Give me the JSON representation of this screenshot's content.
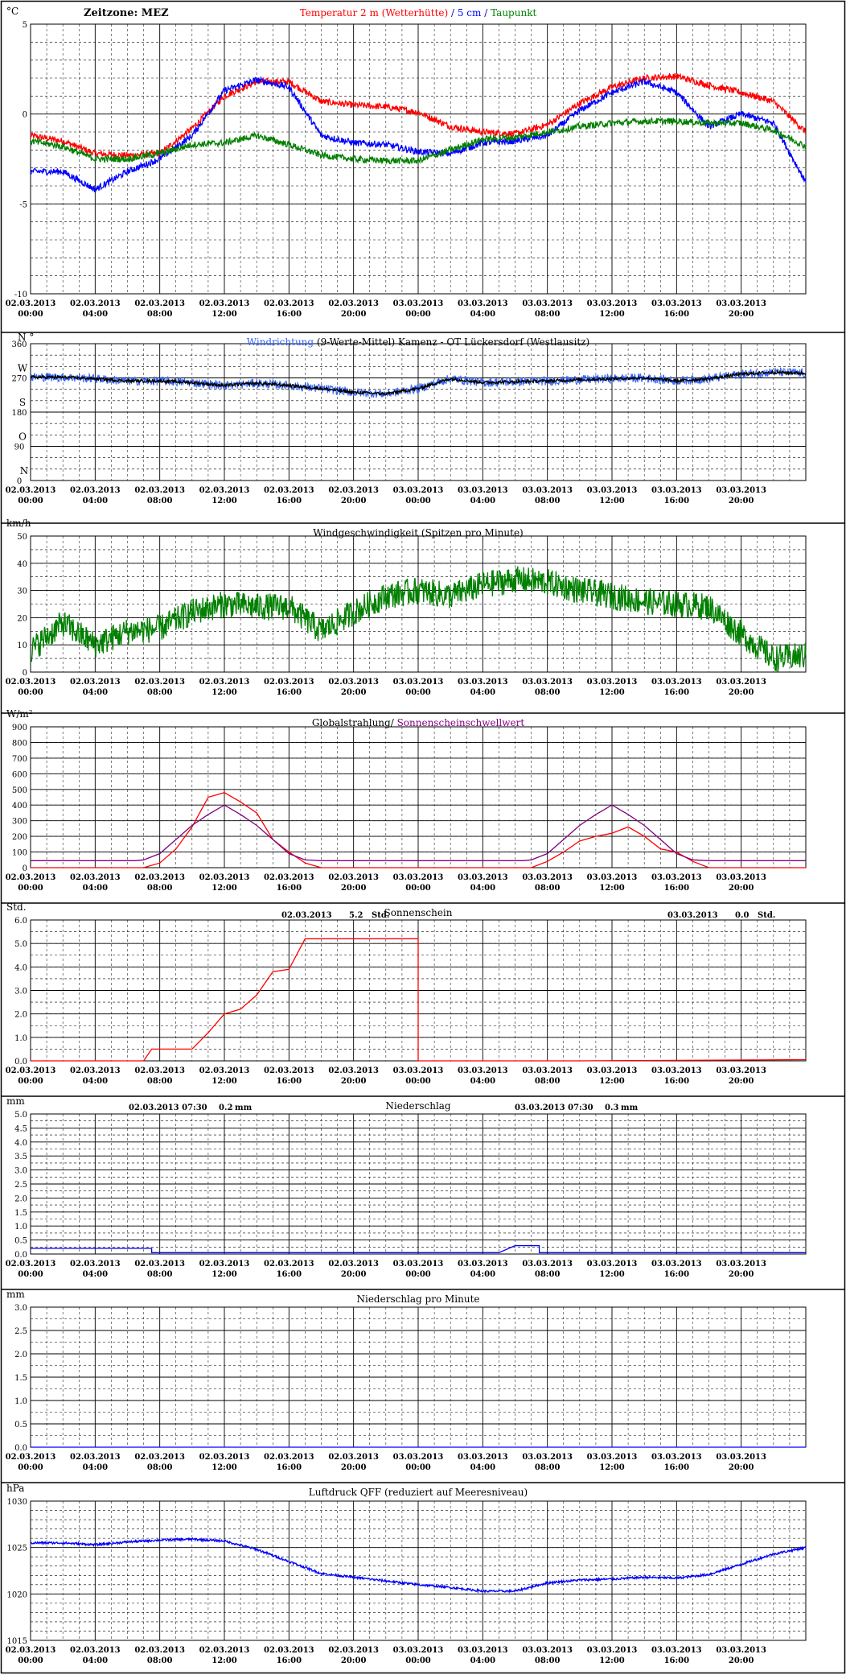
{
  "x_tick_labels": [
    [
      "02.03.2013",
      "00:00"
    ],
    [
      "02.03.2013",
      "04:00"
    ],
    [
      "02.03.2013",
      "08:00"
    ],
    [
      "02.03.2013",
      "12:00"
    ],
    [
      "02.03.2013",
      "16:00"
    ],
    [
      "02.03.2013",
      "20:00"
    ],
    [
      "03.03.2013",
      "00:00"
    ],
    [
      "03.03.2013",
      "04:00"
    ],
    [
      "03.03.2013",
      "08:00"
    ],
    [
      "03.03.2013",
      "12:00"
    ],
    [
      "03.03.2013",
      "16:00"
    ],
    [
      "03.03.2013",
      "20:00"
    ]
  ],
  "chart_data": [
    {
      "id": "temp",
      "type": "line",
      "unit": "°C",
      "ylim": [
        -10,
        5
      ],
      "yticks": [
        5,
        0,
        -5,
        -10
      ],
      "header_left": "Zeitzone: MEZ",
      "title_parts": [
        {
          "text": "Temperatur 2 m (Wetterhütte)",
          "color": "#ff0000"
        },
        {
          "text": "  /  ",
          "color": "#0000cc"
        },
        {
          "text": "5 cm",
          "color": "#0000ff"
        },
        {
          "text": " / ",
          "color": "#0000cc"
        },
        {
          "text": "Taupunkt",
          "color": "#008000"
        }
      ],
      "x_hours": [
        0,
        2,
        4,
        6,
        8,
        10,
        12,
        14,
        16,
        18,
        20,
        22,
        24,
        26,
        28,
        30,
        32,
        34,
        36,
        38,
        40,
        42,
        44,
        46,
        48
      ],
      "series": [
        {
          "color": "#ff0000",
          "values": [
            -1.2,
            -1.5,
            -2.2,
            -2.3,
            -2.2,
            -0.8,
            1.0,
            1.8,
            1.8,
            0.7,
            0.5,
            0.4,
            0.1,
            -0.7,
            -1.0,
            -1.1,
            -0.6,
            0.6,
            1.5,
            2.0,
            2.1,
            1.6,
            1.2,
            0.7,
            -1.0
          ]
        },
        {
          "color": "#0000ff",
          "values": [
            -3.2,
            -3.2,
            -4.2,
            -3.2,
            -2.5,
            -1.2,
            1.3,
            1.9,
            1.5,
            -1.2,
            -1.6,
            -1.7,
            -2.1,
            -2.2,
            -1.6,
            -1.5,
            -1.2,
            0.2,
            1.2,
            1.8,
            1.2,
            -0.7,
            0.0,
            -0.5,
            -3.8
          ]
        },
        {
          "color": "#008000",
          "values": [
            -1.5,
            -1.8,
            -2.5,
            -2.5,
            -2.2,
            -1.7,
            -1.6,
            -1.2,
            -1.7,
            -2.3,
            -2.5,
            -2.6,
            -2.6,
            -2.0,
            -1.4,
            -1.3,
            -1.0,
            -0.7,
            -0.5,
            -0.4,
            -0.4,
            -0.5,
            -0.5,
            -0.9,
            -1.8
          ]
        }
      ]
    },
    {
      "id": "winddir",
      "type": "line",
      "unit": "N °",
      "ylim": [
        0,
        360
      ],
      "yticks": [
        360,
        270,
        180,
        90,
        0
      ],
      "compass": [
        {
          "v": 360,
          "t": "N °"
        },
        {
          "v": 270,
          "t": "W"
        },
        {
          "v": 180,
          "t": "S"
        },
        {
          "v": 90,
          "t": "O"
        },
        {
          "v": 0,
          "t": "N"
        }
      ],
      "title_parts": [
        {
          "text": "Windrichtung",
          "color": "#3366ff"
        },
        {
          "text": " (9-Werte-Mittel)",
          "color": "#000000"
        },
        {
          "text": "          Kamenz - OT Lückersdorf (Westlausitz)",
          "color": "#000000"
        }
      ],
      "x_hours": [
        0,
        2,
        4,
        6,
        8,
        10,
        12,
        14,
        16,
        18,
        20,
        22,
        24,
        26,
        28,
        30,
        32,
        34,
        36,
        38,
        40,
        42,
        44,
        46,
        48
      ],
      "series": [
        {
          "color": "#3366ff",
          "noise": 12,
          "values": [
            272,
            272,
            268,
            262,
            262,
            258,
            250,
            256,
            250,
            242,
            232,
            228,
            242,
            268,
            258,
            260,
            262,
            265,
            268,
            270,
            262,
            268,
            280,
            285,
            282
          ]
        },
        {
          "color": "#000000",
          "noise": 4,
          "values": [
            272,
            272,
            268,
            262,
            262,
            258,
            250,
            256,
            250,
            242,
            232,
            228,
            242,
            268,
            258,
            260,
            262,
            265,
            268,
            270,
            262,
            268,
            280,
            285,
            282
          ]
        }
      ]
    },
    {
      "id": "windspeed",
      "type": "line",
      "unit": "km/h",
      "ylim": [
        0,
        50
      ],
      "yticks": [
        50,
        40,
        30,
        20,
        10,
        0
      ],
      "title_parts": [
        {
          "text": "Windgeschwindigkeit (Spitzen pro Minute)",
          "color": "#000000"
        }
      ],
      "x_hours": [
        0,
        2,
        4,
        6,
        8,
        10,
        12,
        14,
        16,
        18,
        20,
        22,
        24,
        26,
        28,
        30,
        32,
        34,
        36,
        38,
        40,
        42,
        44,
        46,
        48
      ],
      "series": [
        {
          "color": "#008000",
          "noise": 5,
          "values": [
            8,
            18,
            10,
            15,
            16,
            22,
            25,
            24,
            24,
            15,
            22,
            28,
            30,
            28,
            32,
            34,
            33,
            30,
            28,
            26,
            25,
            24,
            14,
            5,
            6
          ]
        }
      ]
    },
    {
      "id": "radiation",
      "type": "line",
      "unit": "W/m²",
      "ylim": [
        0,
        900
      ],
      "yticks": [
        900,
        800,
        700,
        600,
        500,
        400,
        300,
        200,
        100,
        0
      ],
      "title_parts": [
        {
          "text": "Globalstrahlung/ ",
          "color": "#000000"
        },
        {
          "text": "Sonnenscheinschwellwert",
          "color": "#800080"
        }
      ],
      "x_hours": [
        0,
        6.5,
        7,
        8,
        9,
        10,
        11,
        12,
        13,
        14,
        15,
        16,
        17,
        18,
        24,
        30.5,
        31,
        32,
        33,
        34,
        35,
        36,
        37,
        38,
        39,
        40,
        41,
        42,
        48
      ],
      "series": [
        {
          "color": "#ff0000",
          "noise": 0,
          "values": [
            0,
            0,
            0,
            30,
            120,
            260,
            450,
            480,
            420,
            350,
            180,
            100,
            30,
            0,
            0,
            0,
            0,
            40,
            100,
            170,
            200,
            220,
            260,
            200,
            120,
            100,
            40,
            0,
            0
          ]
        },
        {
          "color": "#800080",
          "noise": 0,
          "values": [
            45,
            45,
            50,
            90,
            180,
            270,
            340,
            400,
            340,
            270,
            180,
            90,
            50,
            45,
            45,
            45,
            50,
            90,
            180,
            270,
            340,
            400,
            340,
            270,
            180,
            90,
            50,
            45,
            45
          ]
        }
      ]
    },
    {
      "id": "sunshine",
      "type": "line",
      "unit": "Std.",
      "ylim": [
        0,
        6
      ],
      "yticks": [
        6.0,
        5.0,
        4.0,
        3.0,
        2.0,
        1.0,
        0.0
      ],
      "title_parts": [
        {
          "text": "Sonnenschein",
          "color": "#000000"
        }
      ],
      "summaries": [
        {
          "date": "02.03.2013",
          "value": "5.2",
          "unit": "Std."
        },
        {
          "date": "03.03.2013",
          "value": "0.0",
          "unit": "Std."
        }
      ],
      "x_hours": [
        0,
        7.0,
        7.5,
        10.0,
        11.0,
        12.0,
        13.0,
        14.0,
        15.0,
        16.0,
        17.0,
        24.0,
        24.0,
        34.0,
        48.0
      ],
      "series": [
        {
          "color": "#ff0000",
          "noise": 0,
          "values": [
            0,
            0,
            0.5,
            0.5,
            1.2,
            2.0,
            2.2,
            2.8,
            3.8,
            3.9,
            5.2,
            5.2,
            0,
            0,
            0.05
          ]
        }
      ]
    },
    {
      "id": "precip",
      "type": "line",
      "unit": "mm",
      "ylim": [
        0,
        5
      ],
      "yticks": [
        5.0,
        4.5,
        4.0,
        3.5,
        3.0,
        2.5,
        2.0,
        1.5,
        1.0,
        0.5,
        0.0
      ],
      "title_parts": [
        {
          "text": "Niederschlag",
          "color": "#000000"
        }
      ],
      "summaries": [
        {
          "date": "02.03.2013 07:30",
          "value": "0.2",
          "unit": "mm"
        },
        {
          "date": "03.03.2013 07:30",
          "value": "0.3",
          "unit": "mm"
        }
      ],
      "x_hours": [
        0,
        7.5,
        7.5,
        29.0,
        30.0,
        31.5,
        31.5,
        48.0
      ],
      "series": [
        {
          "color": "#0000ff",
          "noise": 0,
          "values": [
            0.2,
            0.2,
            0.05,
            0.05,
            0.3,
            0.3,
            0.05,
            0.05
          ]
        }
      ]
    },
    {
      "id": "precipmin",
      "type": "line",
      "unit": "mm",
      "ylim": [
        0,
        3
      ],
      "yticks": [
        3.0,
        2.5,
        2.0,
        1.5,
        1.0,
        0.5,
        0.0
      ],
      "title_parts": [
        {
          "text": "Niederschlag pro Minute",
          "color": "#000000"
        }
      ],
      "x_hours": [
        0,
        48
      ],
      "series": [
        {
          "color": "#0000ff",
          "noise": 0,
          "values": [
            0,
            0
          ]
        }
      ]
    },
    {
      "id": "pressure",
      "type": "line",
      "unit": "hPa",
      "ylim": [
        1015,
        1030
      ],
      "yticks": [
        1030,
        1025,
        1020,
        1015
      ],
      "title_parts": [
        {
          "text": "Luftdruck QFF (reduziert auf Meeresniveau)",
          "color": "#000000"
        }
      ],
      "x_hours": [
        0,
        2,
        4,
        6,
        8,
        10,
        12,
        14,
        16,
        18,
        20,
        22,
        24,
        26,
        28,
        30,
        32,
        34,
        36,
        38,
        40,
        42,
        44,
        46,
        48
      ],
      "series": [
        {
          "color": "#0000ff",
          "noise": 0.12,
          "values": [
            1025.5,
            1025.5,
            1025.3,
            1025.6,
            1025.8,
            1025.9,
            1025.7,
            1024.8,
            1023.5,
            1022.2,
            1021.8,
            1021.4,
            1021.0,
            1020.7,
            1020.3,
            1020.3,
            1021.2,
            1021.5,
            1021.6,
            1021.8,
            1021.7,
            1022.1,
            1023.2,
            1024.3,
            1025.0
          ]
        }
      ]
    }
  ]
}
